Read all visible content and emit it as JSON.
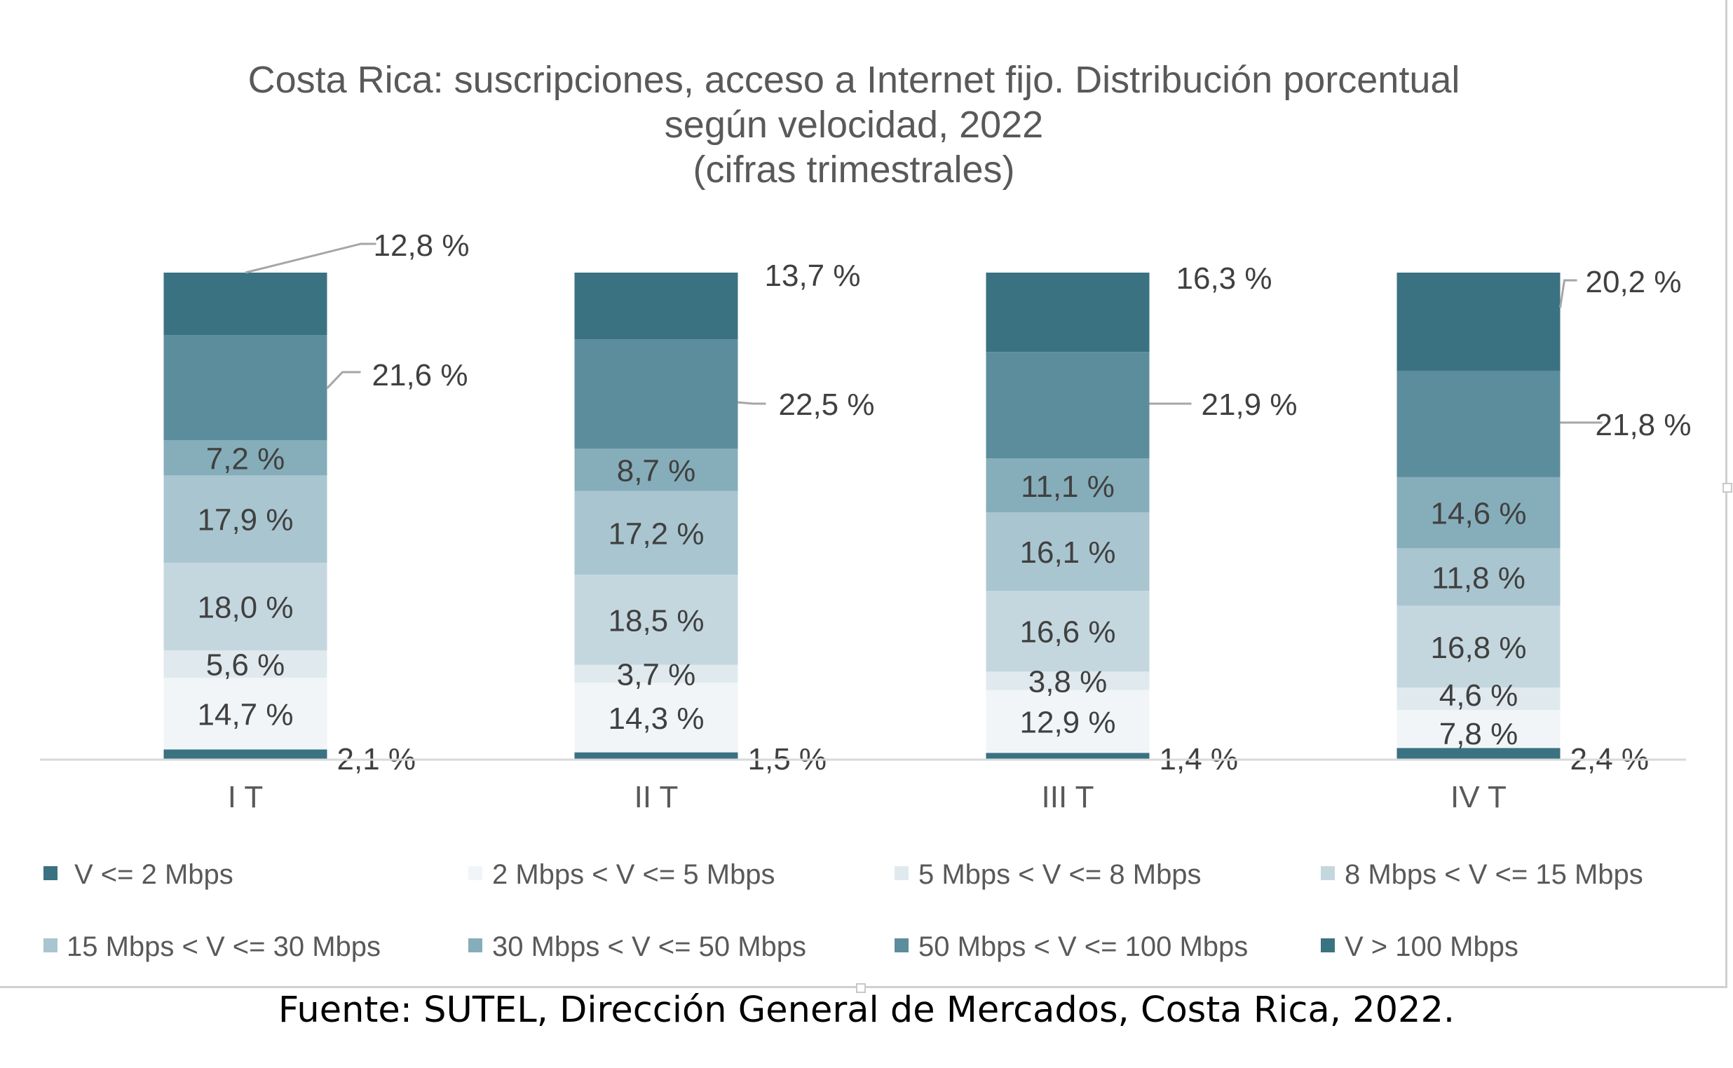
{
  "chart_data": {
    "type": "bar",
    "stacked": true,
    "title_lines": [
      "Costa Rica: suscripciones, acceso a Internet fijo. Distribución porcentual",
      "según velocidad, 2022",
      "(cifras trimestrales)"
    ],
    "categories": [
      "I T",
      "II T",
      "III T",
      "IV T"
    ],
    "ylim": [
      0,
      100
    ],
    "grid": false,
    "legend_position": "bottom",
    "series": [
      {
        "name": "V <= 2 Mbps",
        "color": "#3a7282",
        "values": [
          2.1,
          1.5,
          1.4,
          2.4
        ],
        "labels": [
          "2,1 %",
          "1,5 %",
          "1,4 %",
          "2,4 %"
        ]
      },
      {
        "name": "2 Mbps < V <= 5 Mbps",
        "color": "#f1f5f8",
        "values": [
          14.7,
          14.3,
          12.9,
          7.8
        ],
        "labels": [
          "14,7 %",
          "14,3 %",
          "12,9 %",
          "7,8 %"
        ]
      },
      {
        "name": "5 Mbps < V <= 8 Mbps",
        "color": "#e0eaee",
        "values": [
          5.6,
          3.7,
          3.8,
          4.6
        ],
        "labels": [
          "5,6 %",
          "3,7 %",
          "3,8 %",
          "4,6 %"
        ]
      },
      {
        "name": "8 Mbps < V <= 15 Mbps",
        "color": "#c4d7df",
        "values": [
          18.0,
          18.5,
          16.6,
          16.8
        ],
        "labels": [
          "18,0 %",
          "18,5 %",
          "16,6 %",
          "16,8 %"
        ]
      },
      {
        "name": "15 Mbps < V <= 30 Mbps",
        "color": "#a9c5d0",
        "values": [
          17.9,
          17.2,
          16.1,
          11.8
        ],
        "labels": [
          "17,9 %",
          "17,2 %",
          "16,1 %",
          "11,8 %"
        ]
      },
      {
        "name": "30 Mbps < V <= 50 Mbps",
        "color": "#86adba",
        "values": [
          7.2,
          8.7,
          11.1,
          14.6
        ],
        "labels": [
          "7,2 %",
          "8,7 %",
          "11,1 %",
          "14,6 %"
        ]
      },
      {
        "name": "50 Mbps < V <= 100 Mbps",
        "color": "#5c8d9d",
        "values": [
          21.6,
          22.5,
          21.9,
          21.8
        ],
        "labels": [
          "21,6 %",
          "22,5 %",
          "21,9 %",
          "21,8 %"
        ]
      },
      {
        "name": "V > 100 Mbps",
        "color": "#3a7282",
        "values": [
          12.8,
          13.7,
          16.3,
          20.2
        ],
        "labels": [
          "12,8 %",
          "13,7 %",
          "16,3 %",
          "20,2 %"
        ]
      }
    ]
  },
  "source_note": "Fuente: SUTEL, Dirección General de Mercados, Costa Rica, 2022."
}
